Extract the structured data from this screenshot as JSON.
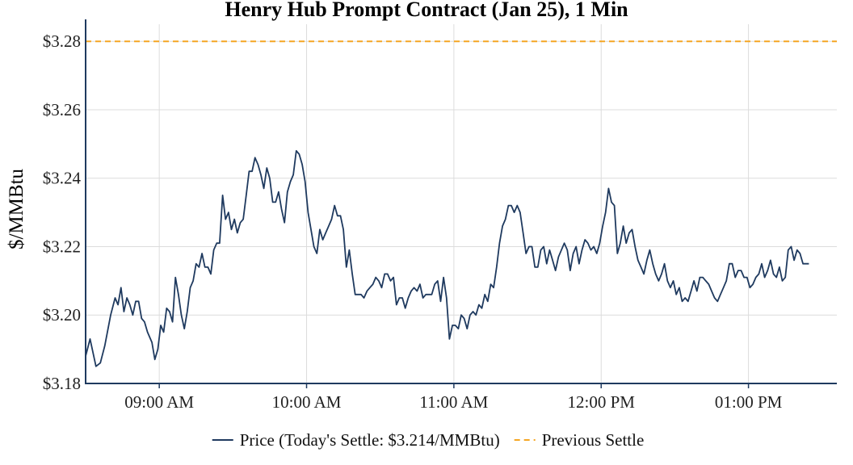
{
  "chart_data": {
    "type": "line",
    "title": "Henry Hub Prompt Contract (Jan 25), 1 Min",
    "ylabel": "$/MMBtu",
    "xlabel": "",
    "ylim": [
      3.18,
      3.285
    ],
    "xlim": [
      8.5,
      13.6
    ],
    "yticks": [
      {
        "value": 3.18,
        "label": "$3.18"
      },
      {
        "value": 3.2,
        "label": "$3.20"
      },
      {
        "value": 3.22,
        "label": "$3.22"
      },
      {
        "value": 3.24,
        "label": "$3.24"
      },
      {
        "value": 3.26,
        "label": "$3.26"
      },
      {
        "value": 3.28,
        "label": "$3.28"
      }
    ],
    "xticks": [
      {
        "value": 9,
        "label": "09:00 AM"
      },
      {
        "value": 10,
        "label": "10:00 AM"
      },
      {
        "value": 11,
        "label": "11:00 AM"
      },
      {
        "value": 12,
        "label": "12:00 PM"
      },
      {
        "value": 13,
        "label": "01:00 PM"
      }
    ],
    "grid": true,
    "legend_position": "bottom-center",
    "series": [
      {
        "name": "Price (Today's Settle: $3.214/MMBtu)",
        "color": "#1f3a5f",
        "style": "solid",
        "points": [
          [
            8.5,
            3.188
          ],
          [
            8.53,
            3.193
          ],
          [
            8.57,
            3.185
          ],
          [
            8.6,
            3.186
          ],
          [
            8.63,
            3.191
          ],
          [
            8.67,
            3.2
          ],
          [
            8.7,
            3.205
          ],
          [
            8.72,
            3.203
          ],
          [
            8.74,
            3.208
          ],
          [
            8.76,
            3.201
          ],
          [
            8.78,
            3.205
          ],
          [
            8.8,
            3.203
          ],
          [
            8.82,
            3.2
          ],
          [
            8.84,
            3.204
          ],
          [
            8.86,
            3.204
          ],
          [
            8.88,
            3.199
          ],
          [
            8.9,
            3.198
          ],
          [
            8.92,
            3.195
          ],
          [
            8.95,
            3.192
          ],
          [
            8.97,
            3.187
          ],
          [
            8.99,
            3.19
          ],
          [
            9.01,
            3.197
          ],
          [
            9.03,
            3.195
          ],
          [
            9.05,
            3.202
          ],
          [
            9.07,
            3.201
          ],
          [
            9.09,
            3.198
          ],
          [
            9.11,
            3.211
          ],
          [
            9.13,
            3.206
          ],
          [
            9.15,
            3.2
          ],
          [
            9.17,
            3.196
          ],
          [
            9.19,
            3.201
          ],
          [
            9.21,
            3.208
          ],
          [
            9.23,
            3.21
          ],
          [
            9.25,
            3.215
          ],
          [
            9.27,
            3.214
          ],
          [
            9.29,
            3.218
          ],
          [
            9.31,
            3.214
          ],
          [
            9.33,
            3.214
          ],
          [
            9.35,
            3.212
          ],
          [
            9.37,
            3.219
          ],
          [
            9.39,
            3.221
          ],
          [
            9.41,
            3.221
          ],
          [
            9.43,
            3.235
          ],
          [
            9.45,
            3.228
          ],
          [
            9.47,
            3.23
          ],
          [
            9.49,
            3.225
          ],
          [
            9.51,
            3.228
          ],
          [
            9.53,
            3.224
          ],
          [
            9.55,
            3.227
          ],
          [
            9.57,
            3.228
          ],
          [
            9.59,
            3.235
          ],
          [
            9.61,
            3.242
          ],
          [
            9.63,
            3.242
          ],
          [
            9.65,
            3.246
          ],
          [
            9.67,
            3.244
          ],
          [
            9.69,
            3.241
          ],
          [
            9.71,
            3.237
          ],
          [
            9.73,
            3.243
          ],
          [
            9.75,
            3.24
          ],
          [
            9.77,
            3.233
          ],
          [
            9.79,
            3.233
          ],
          [
            9.81,
            3.236
          ],
          [
            9.83,
            3.231
          ],
          [
            9.85,
            3.227
          ],
          [
            9.87,
            3.236
          ],
          [
            9.89,
            3.239
          ],
          [
            9.91,
            3.241
          ],
          [
            9.93,
            3.248
          ],
          [
            9.95,
            3.247
          ],
          [
            9.97,
            3.244
          ],
          [
            9.99,
            3.239
          ],
          [
            10.01,
            3.23
          ],
          [
            10.03,
            3.225
          ],
          [
            10.05,
            3.22
          ],
          [
            10.07,
            3.218
          ],
          [
            10.09,
            3.225
          ],
          [
            10.11,
            3.222
          ],
          [
            10.13,
            3.224
          ],
          [
            10.15,
            3.226
          ],
          [
            10.17,
            3.228
          ],
          [
            10.19,
            3.232
          ],
          [
            10.21,
            3.229
          ],
          [
            10.23,
            3.229
          ],
          [
            10.25,
            3.225
          ],
          [
            10.27,
            3.214
          ],
          [
            10.29,
            3.219
          ],
          [
            10.31,
            3.212
          ],
          [
            10.33,
            3.206
          ],
          [
            10.35,
            3.206
          ],
          [
            10.37,
            3.206
          ],
          [
            10.39,
            3.205
          ],
          [
            10.41,
            3.207
          ],
          [
            10.43,
            3.208
          ],
          [
            10.45,
            3.209
          ],
          [
            10.47,
            3.211
          ],
          [
            10.49,
            3.21
          ],
          [
            10.51,
            3.208
          ],
          [
            10.53,
            3.212
          ],
          [
            10.55,
            3.212
          ],
          [
            10.57,
            3.21
          ],
          [
            10.59,
            3.211
          ],
          [
            10.61,
            3.203
          ],
          [
            10.63,
            3.205
          ],
          [
            10.65,
            3.205
          ],
          [
            10.67,
            3.202
          ],
          [
            10.69,
            3.205
          ],
          [
            10.71,
            3.207
          ],
          [
            10.73,
            3.208
          ],
          [
            10.75,
            3.207
          ],
          [
            10.77,
            3.209
          ],
          [
            10.79,
            3.205
          ],
          [
            10.81,
            3.206
          ],
          [
            10.83,
            3.206
          ],
          [
            10.85,
            3.206
          ],
          [
            10.87,
            3.209
          ],
          [
            10.89,
            3.21
          ],
          [
            10.91,
            3.204
          ],
          [
            10.93,
            3.211
          ],
          [
            10.95,
            3.205
          ],
          [
            10.97,
            3.193
          ],
          [
            10.99,
            3.197
          ],
          [
            11.01,
            3.197
          ],
          [
            11.03,
            3.196
          ],
          [
            11.05,
            3.2
          ],
          [
            11.07,
            3.199
          ],
          [
            11.09,
            3.196
          ],
          [
            11.11,
            3.2
          ],
          [
            11.13,
            3.201
          ],
          [
            11.15,
            3.2
          ],
          [
            11.17,
            3.203
          ],
          [
            11.19,
            3.202
          ],
          [
            11.21,
            3.206
          ],
          [
            11.23,
            3.204
          ],
          [
            11.25,
            3.209
          ],
          [
            11.27,
            3.208
          ],
          [
            11.29,
            3.214
          ],
          [
            11.31,
            3.221
          ],
          [
            11.33,
            3.226
          ],
          [
            11.35,
            3.228
          ],
          [
            11.37,
            3.232
          ],
          [
            11.39,
            3.232
          ],
          [
            11.41,
            3.23
          ],
          [
            11.43,
            3.232
          ],
          [
            11.45,
            3.23
          ],
          [
            11.47,
            3.224
          ],
          [
            11.49,
            3.218
          ],
          [
            11.51,
            3.22
          ],
          [
            11.53,
            3.22
          ],
          [
            11.55,
            3.214
          ],
          [
            11.57,
            3.214
          ],
          [
            11.59,
            3.219
          ],
          [
            11.61,
            3.22
          ],
          [
            11.63,
            3.215
          ],
          [
            11.65,
            3.219
          ],
          [
            11.67,
            3.216
          ],
          [
            11.69,
            3.213
          ],
          [
            11.71,
            3.217
          ],
          [
            11.73,
            3.219
          ],
          [
            11.75,
            3.221
          ],
          [
            11.77,
            3.219
          ],
          [
            11.79,
            3.213
          ],
          [
            11.81,
            3.218
          ],
          [
            11.83,
            3.22
          ],
          [
            11.85,
            3.215
          ],
          [
            11.87,
            3.219
          ],
          [
            11.89,
            3.222
          ],
          [
            11.91,
            3.221
          ],
          [
            11.93,
            3.219
          ],
          [
            11.95,
            3.22
          ],
          [
            11.97,
            3.218
          ],
          [
            11.99,
            3.221
          ],
          [
            12.01,
            3.226
          ],
          [
            12.03,
            3.23
          ],
          [
            12.05,
            3.237
          ],
          [
            12.07,
            3.233
          ],
          [
            12.09,
            3.232
          ],
          [
            12.11,
            3.218
          ],
          [
            12.13,
            3.221
          ],
          [
            12.15,
            3.226
          ],
          [
            12.17,
            3.221
          ],
          [
            12.19,
            3.224
          ],
          [
            12.21,
            3.225
          ],
          [
            12.23,
            3.22
          ],
          [
            12.25,
            3.216
          ],
          [
            12.27,
            3.214
          ],
          [
            12.29,
            3.212
          ],
          [
            12.31,
            3.216
          ],
          [
            12.33,
            3.219
          ],
          [
            12.35,
            3.215
          ],
          [
            12.37,
            3.212
          ],
          [
            12.39,
            3.21
          ],
          [
            12.41,
            3.212
          ],
          [
            12.43,
            3.215
          ],
          [
            12.45,
            3.21
          ],
          [
            12.47,
            3.208
          ],
          [
            12.49,
            3.21
          ],
          [
            12.51,
            3.206
          ],
          [
            12.53,
            3.208
          ],
          [
            12.55,
            3.204
          ],
          [
            12.57,
            3.205
          ],
          [
            12.59,
            3.204
          ],
          [
            12.61,
            3.207
          ],
          [
            12.63,
            3.21
          ],
          [
            12.65,
            3.207
          ],
          [
            12.67,
            3.211
          ],
          [
            12.69,
            3.211
          ],
          [
            12.71,
            3.21
          ],
          [
            12.73,
            3.209
          ],
          [
            12.75,
            3.207
          ],
          [
            12.77,
            3.205
          ],
          [
            12.79,
            3.204
          ],
          [
            12.81,
            3.206
          ],
          [
            12.83,
            3.208
          ],
          [
            12.85,
            3.21
          ],
          [
            12.87,
            3.215
          ],
          [
            12.89,
            3.215
          ],
          [
            12.91,
            3.211
          ],
          [
            12.93,
            3.213
          ],
          [
            12.95,
            3.213
          ],
          [
            12.97,
            3.211
          ],
          [
            12.99,
            3.211
          ],
          [
            13.01,
            3.208
          ],
          [
            13.03,
            3.209
          ],
          [
            13.05,
            3.211
          ],
          [
            13.07,
            3.212
          ],
          [
            13.09,
            3.215
          ],
          [
            13.11,
            3.211
          ],
          [
            13.13,
            3.213
          ],
          [
            13.15,
            3.216
          ],
          [
            13.17,
            3.212
          ],
          [
            13.19,
            3.211
          ],
          [
            13.21,
            3.214
          ],
          [
            13.23,
            3.21
          ],
          [
            13.25,
            3.211
          ],
          [
            13.27,
            3.219
          ],
          [
            13.29,
            3.22
          ],
          [
            13.31,
            3.216
          ],
          [
            13.33,
            3.219
          ],
          [
            13.35,
            3.218
          ],
          [
            13.37,
            3.215
          ],
          [
            13.39,
            3.215
          ],
          [
            13.41,
            3.215
          ]
        ]
      },
      {
        "name": "Previous Settle",
        "color": "#f5a623",
        "style": "dashed",
        "constant": 3.28
      }
    ]
  }
}
